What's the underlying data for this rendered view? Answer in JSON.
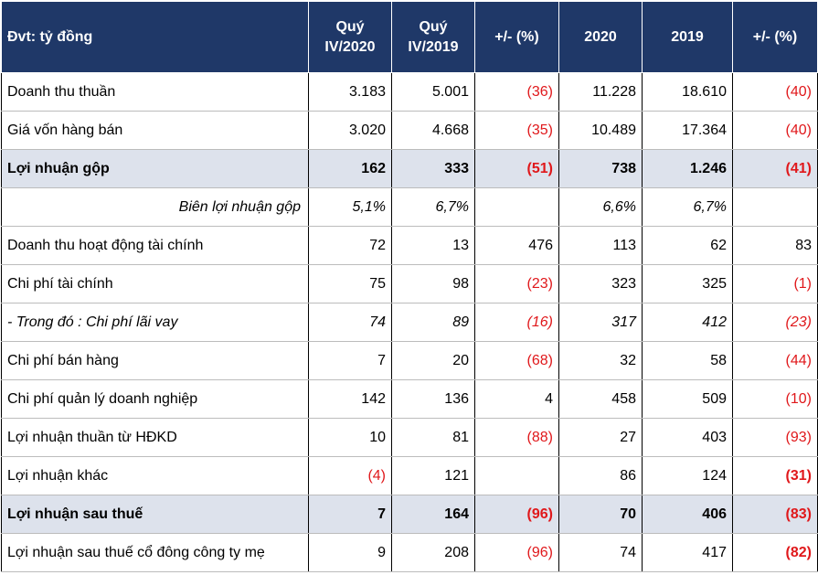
{
  "header": {
    "unit": "Đvt: tỷ đồng",
    "q4_2020": [
      "Quý",
      "IV/2020"
    ],
    "q4_2019": [
      "Quý",
      "IV/2019"
    ],
    "pct_q": "+/- (%)",
    "y2020": "2020",
    "y2019": "2019",
    "pct_y": "+/- (%)"
  },
  "rows": [
    {
      "label": "Doanh thu thuần",
      "q20": "3.183",
      "q19": "5.001",
      "pq": "(36)",
      "y20": "11.228",
      "y19": "18.610",
      "py": "(40)"
    },
    {
      "label": "Giá vốn hàng bán",
      "q20": "3.020",
      "q19": "4.668",
      "pq": "(35)",
      "y20": "10.489",
      "y19": "17.364",
      "py": "(40)"
    },
    {
      "label": "Lợi nhuận gộp",
      "q20": "162",
      "q19": "333",
      "pq": "(51)",
      "y20": "738",
      "y19": "1.246",
      "py": "(41)"
    },
    {
      "label": "Biên lợi nhuận gộp",
      "q20": "5,1%",
      "q19": "6,7%",
      "pq": "",
      "y20": "6,6%",
      "y19": "6,7%",
      "py": ""
    },
    {
      "label": "Doanh thu hoạt động tài chính",
      "q20": "72",
      "q19": "13",
      "pq": "476",
      "y20": "113",
      "y19": "62",
      "py": "83"
    },
    {
      "label": "Chi phí tài chính",
      "q20": "75",
      "q19": "98",
      "pq": "(23)",
      "y20": "323",
      "y19": "325",
      "py": "(1)"
    },
    {
      "label": "- Trong đó : Chi phí lãi vay",
      "q20": "74",
      "q19": "89",
      "pq": "(16)",
      "y20": "317",
      "y19": "412",
      "py": "(23)"
    },
    {
      "label": "Chi phí bán hàng",
      "q20": "7",
      "q19": "20",
      "pq": "(68)",
      "y20": "32",
      "y19": "58",
      "py": "(44)"
    },
    {
      "label": "Chi phí quản lý doanh nghiệp",
      "q20": "142",
      "q19": "136",
      "pq": "4",
      "y20": "458",
      "y19": "509",
      "py": "(10)"
    },
    {
      "label": "Lợi nhuận thuần từ HĐKD",
      "q20": "10",
      "q19": "81",
      "pq": "(88)",
      "y20": "27",
      "y19": "403",
      "py": "(93)"
    },
    {
      "label": "Lợi nhuận khác",
      "q20": "(4)",
      "q19": "121",
      "pq": "",
      "y20": "86",
      "y19": "124",
      "py": "(31)"
    },
    {
      "label": "Lợi nhuận sau thuế",
      "q20": "7",
      "q19": "164",
      "pq": "(96)",
      "y20": "70",
      "y19": "406",
      "py": "(83)"
    },
    {
      "label": "Lợi nhuận sau thuế cổ đông công ty mẹ",
      "q20": "9",
      "q19": "208",
      "pq": "(96)",
      "y20": "74",
      "y19": "417",
      "py": "(82)"
    }
  ],
  "colors": {
    "header_bg": "#1f3868",
    "highlight_bg": "#dde2ec",
    "negative": "#e0181b"
  }
}
